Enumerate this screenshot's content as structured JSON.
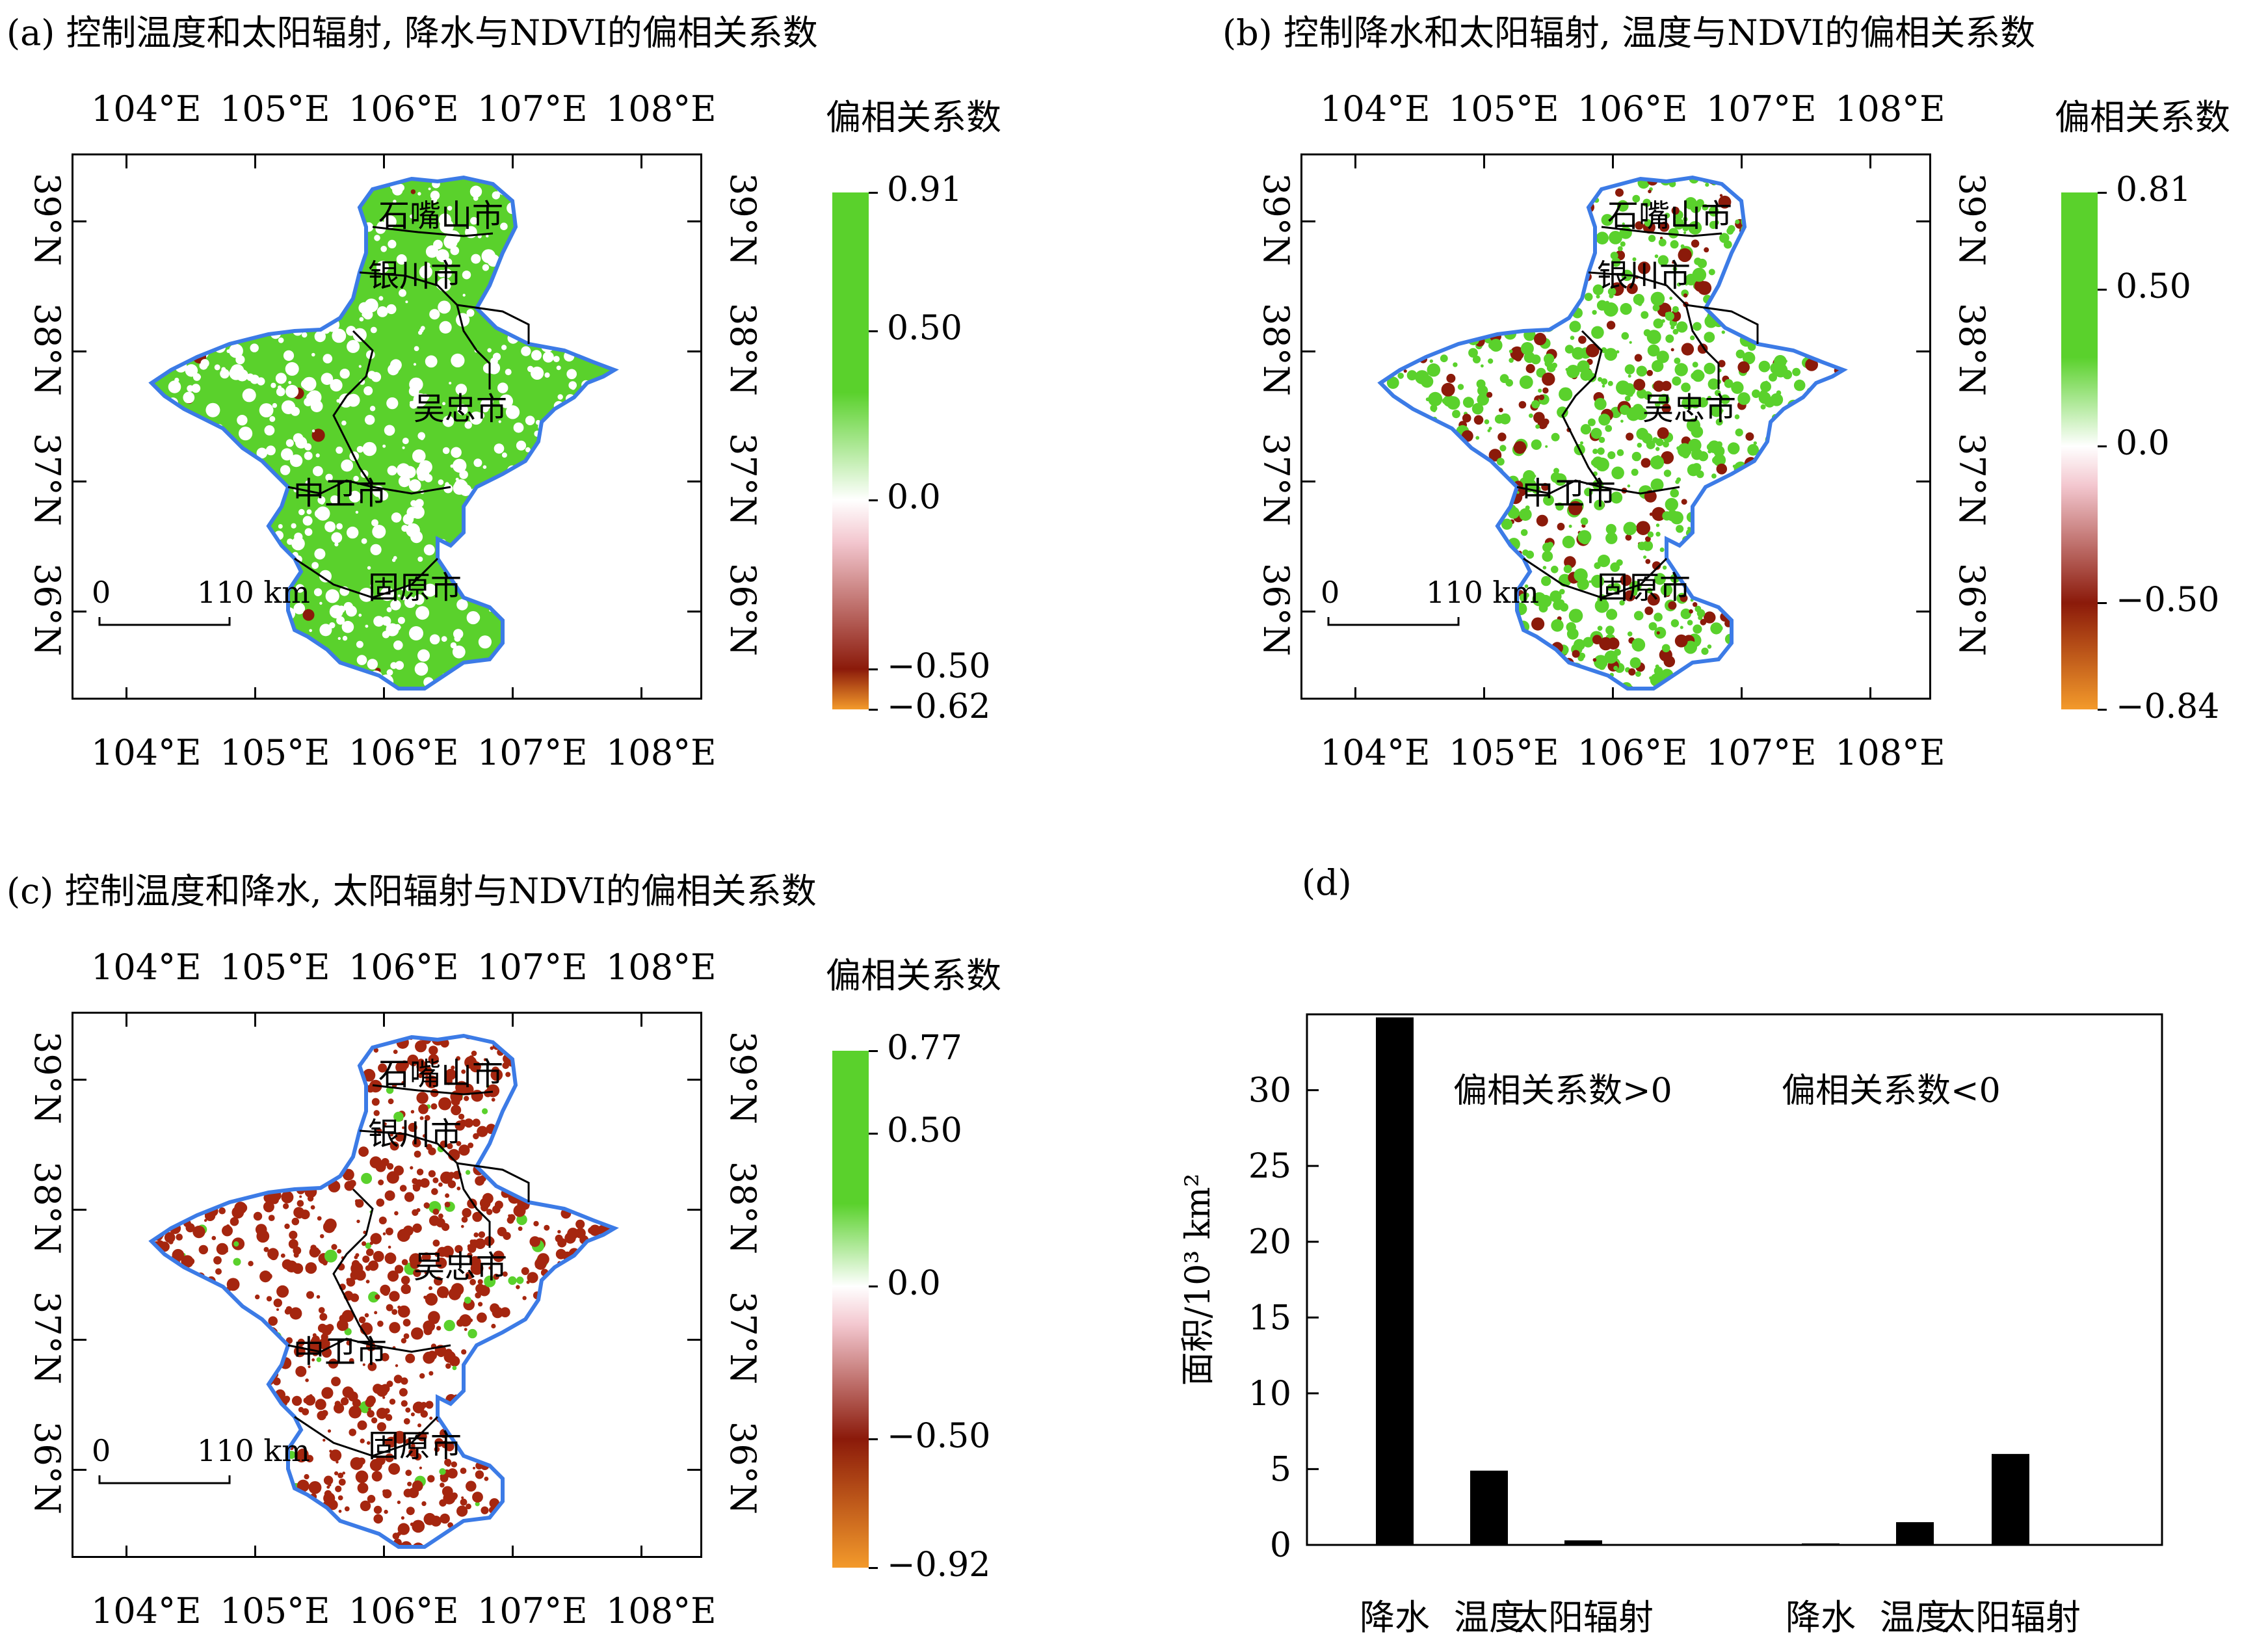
{
  "panels": {
    "a": {
      "title": "(a) 控制温度和太阳辐射, 降水与NDVI的偏相关系数",
      "colorbar_title": "偏相关系数",
      "colorbar_labels": [
        "0.91",
        "0.50",
        "0.0",
        "−0.50",
        "−0.62"
      ],
      "colorbar_values": [
        0.91,
        0.5,
        0.0,
        -0.5,
        -0.62
      ]
    },
    "b": {
      "title": "(b) 控制降水和太阳辐射, 温度与NDVI的偏相关系数",
      "colorbar_title": "偏相关系数",
      "colorbar_labels": [
        "0.81",
        "0.50",
        "0.0",
        "−0.50",
        "−0.84"
      ],
      "colorbar_values": [
        0.81,
        0.5,
        0.0,
        -0.5,
        -0.84
      ]
    },
    "c": {
      "title": "(c) 控制温度和降水, 太阳辐射与NDVI的偏相关系数",
      "colorbar_title": "偏相关系数",
      "colorbar_labels": [
        "0.77",
        "0.50",
        "0.0",
        "−0.50",
        "−0.92"
      ],
      "colorbar_values": [
        0.77,
        0.5,
        0.0,
        -0.5,
        -0.92
      ]
    },
    "d": {
      "title": "(d)"
    }
  },
  "map_common": {
    "lon_labels": [
      "104°E",
      "105°E",
      "106°E",
      "107°E",
      "108°E"
    ],
    "lat_labels": [
      "39°N",
      "38°N",
      "37°N",
      "36°N"
    ],
    "cities": [
      "石嘴山市",
      "银川市",
      "吴忠市",
      "中卫市",
      "固原市"
    ],
    "scale_zero": "0",
    "scale_distance": "110 km"
  },
  "colors": {
    "positive": "#5ad12c",
    "negative": "#8b1a0a",
    "low": "#f39a2b",
    "outline": "#3c7be6",
    "border": "#000000"
  },
  "chart_data": {
    "type": "bar",
    "title": "",
    "ylabel": "面积/10³ km²",
    "ylim": [
      0,
      35
    ],
    "yticks": [
      0,
      5,
      10,
      15,
      20,
      25,
      30
    ],
    "groups": [
      "偏相关系数>0",
      "偏相关系数<0"
    ],
    "categories": [
      "降水",
      "温度",
      "太阳辐射",
      "降水",
      "温度",
      "太阳辐射"
    ],
    "values": [
      34.8,
      4.9,
      0.3,
      0.1,
      1.5,
      6.0
    ],
    "bar_color": "#000000"
  }
}
